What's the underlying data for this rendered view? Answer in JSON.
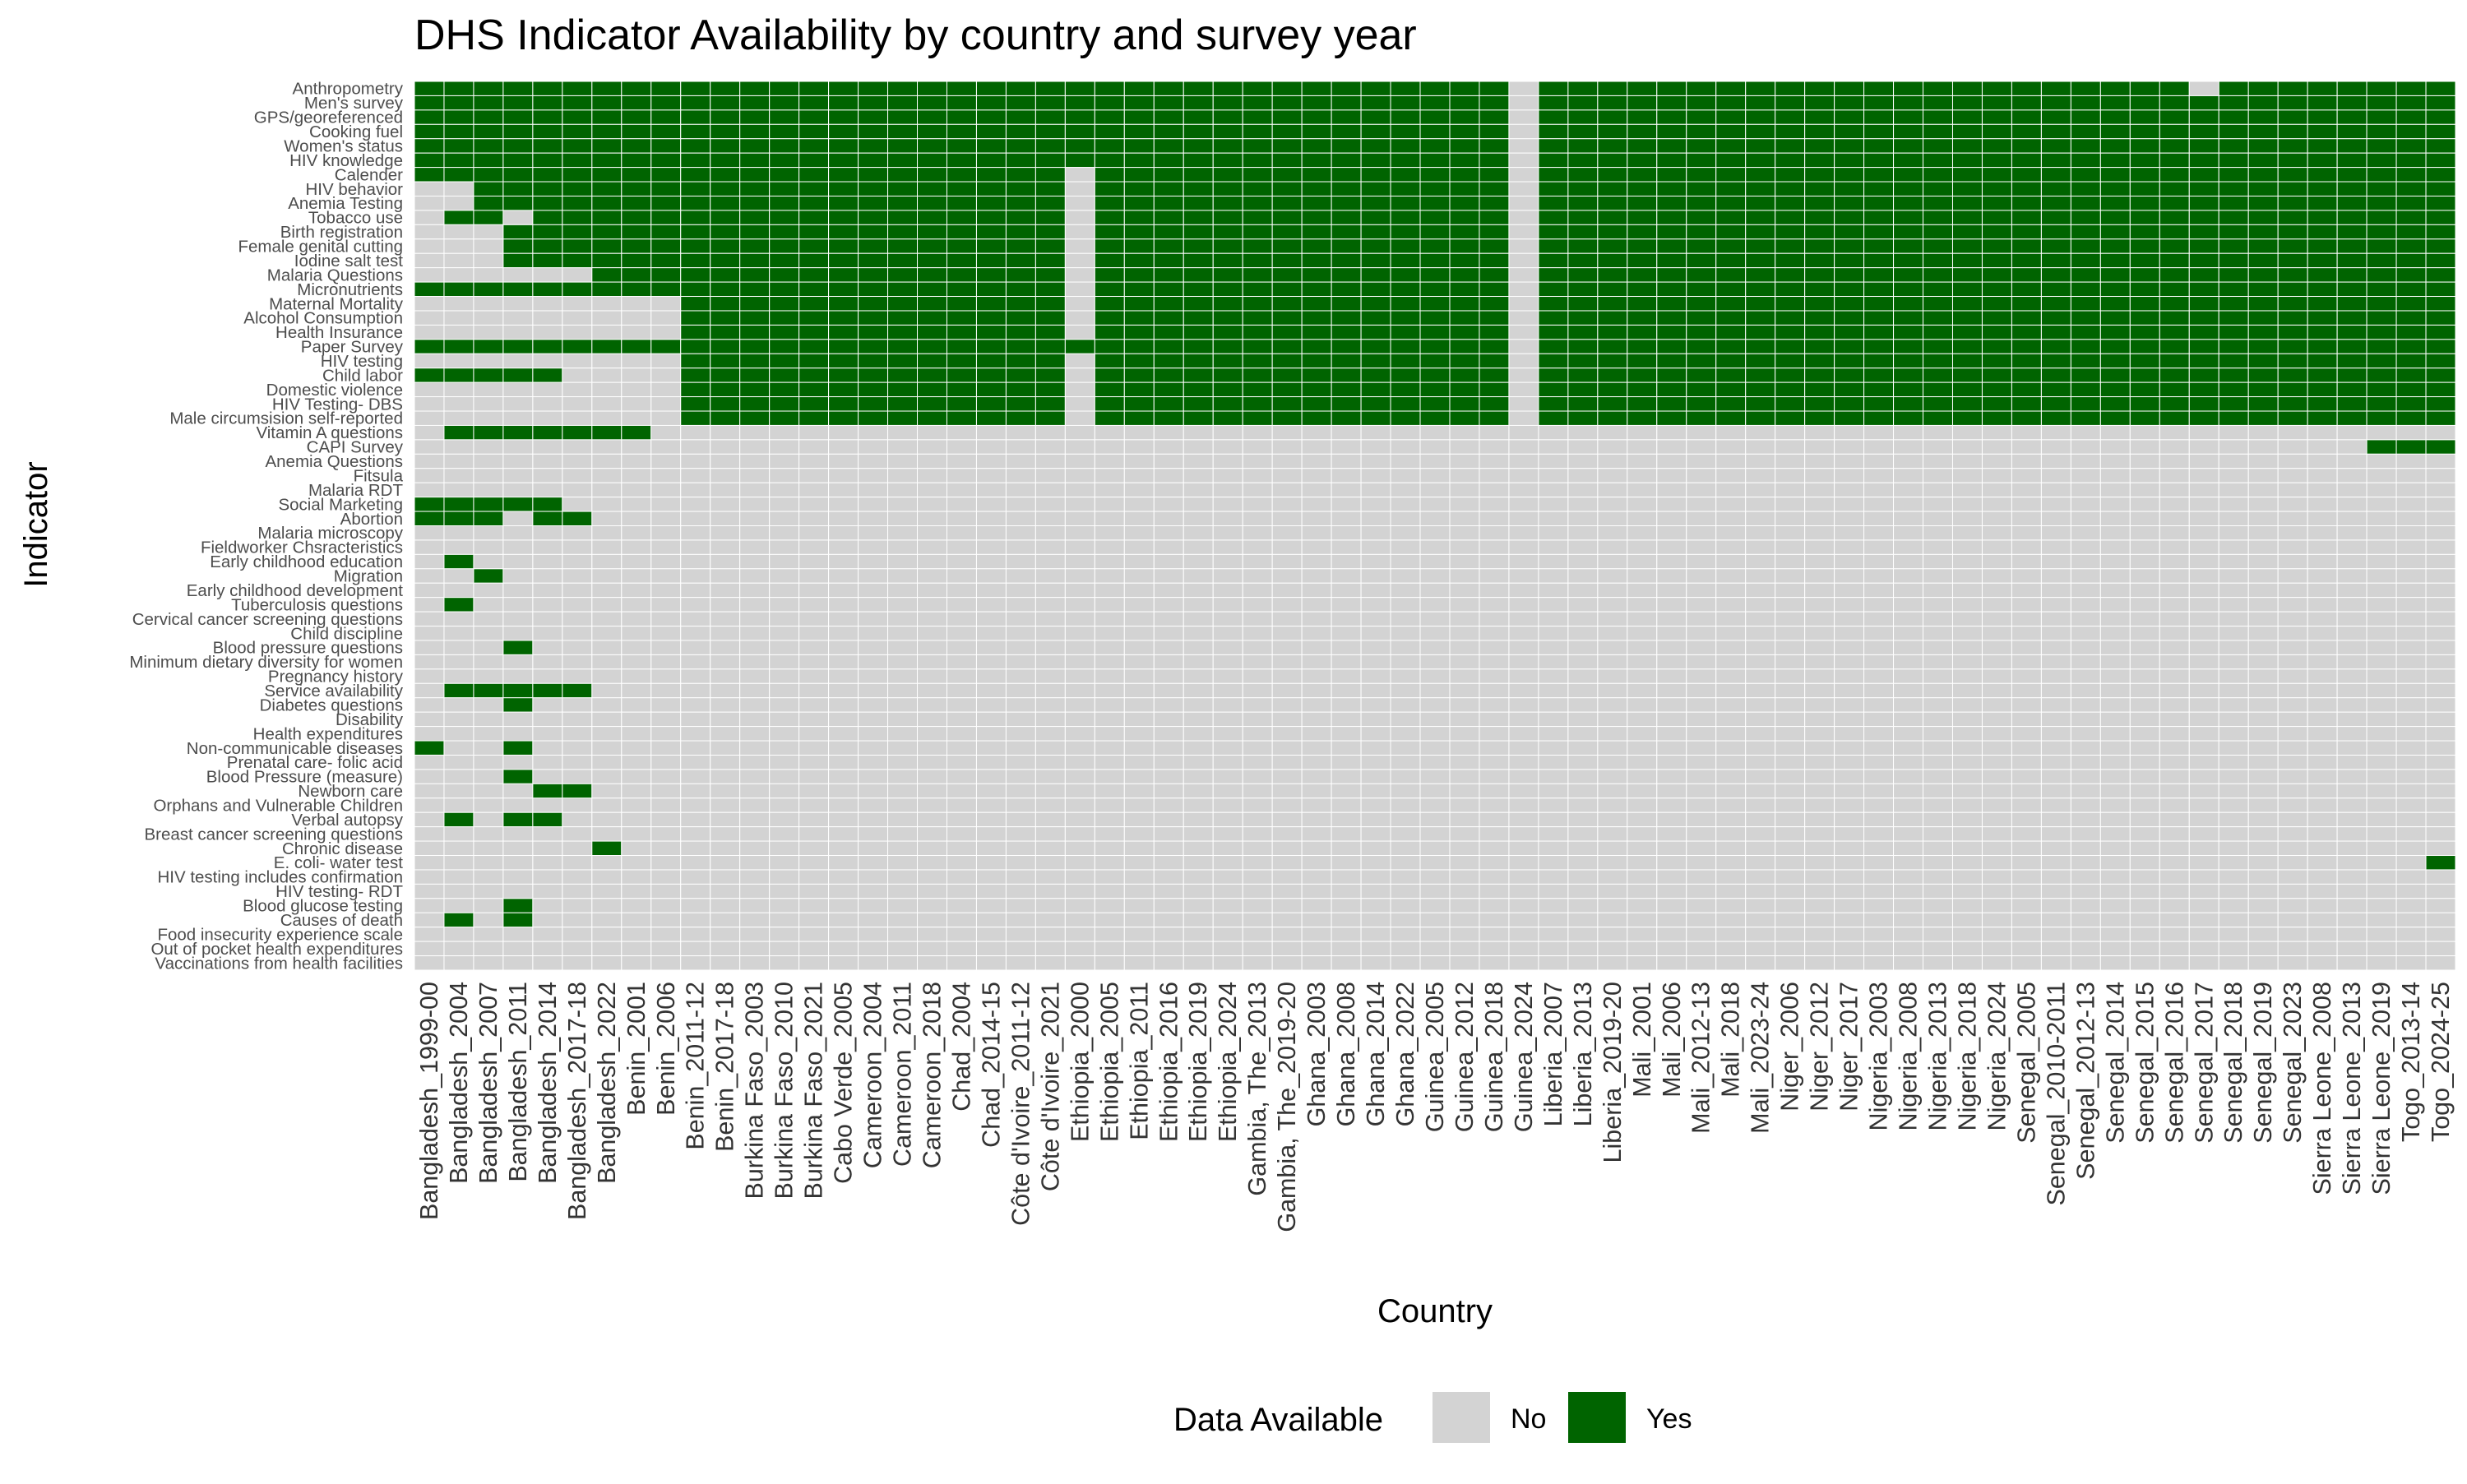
{
  "chart_data": {
    "type": "heatmap",
    "title": "DHS Indicator Availability by country and survey year",
    "xlabel": "Country",
    "ylabel": "Indicator",
    "legend": {
      "title": "Data Available",
      "position": "bottom",
      "entries": [
        {
          "label": "No",
          "color": "#d3d3d3"
        },
        {
          "label": "Yes",
          "color": "#006400"
        }
      ]
    },
    "colors": {
      "no": "#d3d3d3",
      "yes": "#006400",
      "background": "#ffffff"
    },
    "grid": false,
    "columns": [
      "Bangladesh_1999-00",
      "Bangladesh_2004",
      "Bangladesh_2007",
      "Bangladesh_2011",
      "Bangladesh_2014",
      "Bangladesh_2017-18",
      "Bangladesh_2022",
      "Benin_2001",
      "Benin_2006",
      "Benin_2011-12",
      "Benin_2017-18",
      "Burkina Faso_2003",
      "Burkina Faso_2010",
      "Burkina Faso_2021",
      "Cabo Verde_2005",
      "Cameroon_2004",
      "Cameroon_2011",
      "Cameroon_2018",
      "Chad_2004",
      "Chad_2014-15",
      "Côte d'Ivoire_2011-12",
      "Côte d'Ivoire_2021",
      "Ethiopia_2000",
      "Ethiopia_2005",
      "Ethiopia_2011",
      "Ethiopia_2016",
      "Ethiopia_2019",
      "Ethiopia_2024",
      "Gambia, The_2013",
      "Gambia, The_2019-20",
      "Ghana_2003",
      "Ghana_2008",
      "Ghana_2014",
      "Ghana_2022",
      "Guinea_2005",
      "Guinea_2012",
      "Guinea_2018",
      "Guinea_2024",
      "Liberia_2007",
      "Liberia_2013",
      "Liberia_2019-20",
      "Mali_2001",
      "Mali_2006",
      "Mali_2012-13",
      "Mali_2018",
      "Mali_2023-24",
      "Niger_2006",
      "Niger_2012",
      "Niger_2017",
      "Nigeria_2003",
      "Nigeria_2008",
      "Nigeria_2013",
      "Nigeria_2018",
      "Nigeria_2024",
      "Senegal_2005",
      "Senegal_2010-2011",
      "Senegal_2012-13",
      "Senegal_2014",
      "Senegal_2015",
      "Senegal_2016",
      "Senegal_2017",
      "Senegal_2018",
      "Senegal_2019",
      "Senegal_2023",
      "Sierra Leone_2008",
      "Sierra Leone_2013",
      "Sierra Leone_2019",
      "Togo_2013-14",
      "Togo_2024-25"
    ],
    "rows": [
      "Anthropometry",
      "Men's survey",
      "GPS/georeferenced",
      "Cooking fuel",
      "Women's status",
      "HIV knowledge",
      "Calender",
      "HIV behavior",
      "Anemia Testing",
      "Tobacco use",
      "Birth registration",
      "Female genital cutting",
      "Iodine salt test",
      "Malaria Questions",
      "Micronutrients",
      "Maternal Mortality",
      "Alcohol Consumption",
      "Health Insurance",
      "Paper Survey",
      "HIV testing",
      "Child labor",
      "Domestic violence",
      "HIV Testing- DBS",
      "Male circumsision self-reported",
      "Vitamin A  questions",
      "CAPI Survey",
      "Anemia Questions",
      "Fitsula",
      "Malaria RDT",
      "Social Marketing",
      "Abortion",
      "Malaria microscopy",
      "Fieldworker Chsracteristics",
      "Early childhood education",
      "Migration",
      "Early childhood development",
      "Tuberculosis questions",
      "Cervical cancer screening questions",
      "Child discipline",
      "Blood pressure questions",
      "Minimum dietary diversity for women",
      "Pregnancy history",
      "Service availability",
      "Diabetes questions",
      "Disability",
      "Health expenditures",
      "Non-communicable diseases",
      "Prenatal care- folic acid",
      "Blood Pressure (measure)",
      "Newborn care",
      "Orphans and Vulnerable Children",
      "Verbal autopsy",
      "Breast cancer screening questions",
      "Chronic disease",
      "E. coli- water test",
      "HIV testing includes confirmation",
      "HIV testing- RDT",
      "Blood glucose testing",
      "Causes of death",
      "Food insecurity experience scale",
      "Out of pocket health expenditures",
      "Vaccinations from health facilities"
    ],
    "encoding": "values[row] is a 69-character string, one per column in order; 1 = Yes (data available), 0 = No",
    "values": [
      "111111111111111111111111111111111111101111111111111111111111011111111",
      "111111111111111111111111111111111111101111111111111111111111111111111",
      "111111111111111111111111111111111111101111111111111111111111111111111",
      "111111111111111111111111111111111111101111111111111111111111111111111",
      "111111111111111111111111111111111111101111111111111111111111111111111",
      "111111111111111111111111111111111111101111111111111111111111111111111",
      "111111111111111111111101111111111111101111111111111111111111111111111",
      "001111111111111111111101111111111111101111111111111111111111111111111",
      "001111111111111111111101111111111111101111111111111111111111111111111",
      "011011111111111111111101111111111111101111111111111111111111111111111",
      "000111111111111111111101111111111111101111111111111111111111111111111",
      "000111111111111111111101111111111111101111111111111111111111111111111",
      "000111111111111111111101111111111111101111111111111111111111111111111",
      "000000111111111111111101111111111111101111111111111111111111111111111",
      "111111111111111111111101111111111111101111111111111111111111111111111",
      "000000000111111111111101111111111111101111111111111111111111111111111",
      "000000000111111111111101111111111111101111111111111111111111111111111",
      "000000000111111111111101111111111111101111111111111111111111111111111",
      "111111111111111111111111111111111111101111111111111111111111111111111",
      "000000000111111111111101111111111111101111111111111111111111111111111",
      "111110000111111111111101111111111111101111111111111111111111111111111",
      "000000000111111111111101111111111111101111111111111111111111111111111",
      "000000000111111111111101111111111111101111111111111111111111111111111",
      "000000000111111111111101111111111111101111111111111111111111111111111",
      "011111110000000000000000000000000000000000000000000000000000000000000",
      "000000000000000000000000000000000000000000000000000000000000000000111",
      "000000000000000000000000000000000000000000000000000000000000000000000",
      "000000000000000000000000000000000000000000000000000000000000000000000",
      "000000000000000000000000000000000000000000000000000000000000000000000",
      "111110000000000000000000000000000000000000000000000000000000000000000",
      "111011000000000000000000000000000000000000000000000000000000000000000",
      "000000000000000000000000000000000000000000000000000000000000000000000",
      "000000000000000000000000000000000000000000000000000000000000000000000",
      "010000000000000000000000000000000000000000000000000000000000000000000",
      "001000000000000000000000000000000000000000000000000000000000000000000",
      "000000000000000000000000000000000000000000000000000000000000000000000",
      "010000000000000000000000000000000000000000000000000000000000000000000",
      "000000000000000000000000000000000000000000000000000000000000000000000",
      "000000000000000000000000000000000000000000000000000000000000000000000",
      "000100000000000000000000000000000000000000000000000000000000000000000",
      "000000000000000000000000000000000000000000000000000000000000000000000",
      "000000000000000000000000000000000000000000000000000000000000000000000",
      "011111000000000000000000000000000000000000000000000000000000000000000",
      "000100000000000000000000000000000000000000000000000000000000000000000",
      "000000000000000000000000000000000000000000000000000000000000000000000",
      "000000000000000000000000000000000000000000000000000000000000000000000",
      "100100000000000000000000000000000000000000000000000000000000000000000",
      "000000000000000000000000000000000000000000000000000000000000000000000",
      "000100000000000000000000000000000000000000000000000000000000000000000",
      "000011000000000000000000000000000000000000000000000000000000000000000",
      "000000000000000000000000000000000000000000000000000000000000000000000",
      "010110000000000000000000000000000000000000000000000000000000000000000",
      "000000000000000000000000000000000000000000000000000000000000000000000",
      "000000100000000000000000000000000000000000000000000000000000000000000",
      "000000000000000000000000000000000000000000000000000000000000000000001",
      "000000000000000000000000000000000000000000000000000000000000000000000",
      "000000000000000000000000000000000000000000000000000000000000000000000",
      "000100000000000000000000000000000000000000000000000000000000000000000",
      "010100000000000000000000000000000000000000000000000000000000000000000",
      "000000000000000000000000000000000000000000000000000000000000000000000",
      "000000000000000000000000000000000000000000000000000000000000000000000",
      "000000000000000000000000000000000000000000000000000000000000000000000"
    ]
  }
}
